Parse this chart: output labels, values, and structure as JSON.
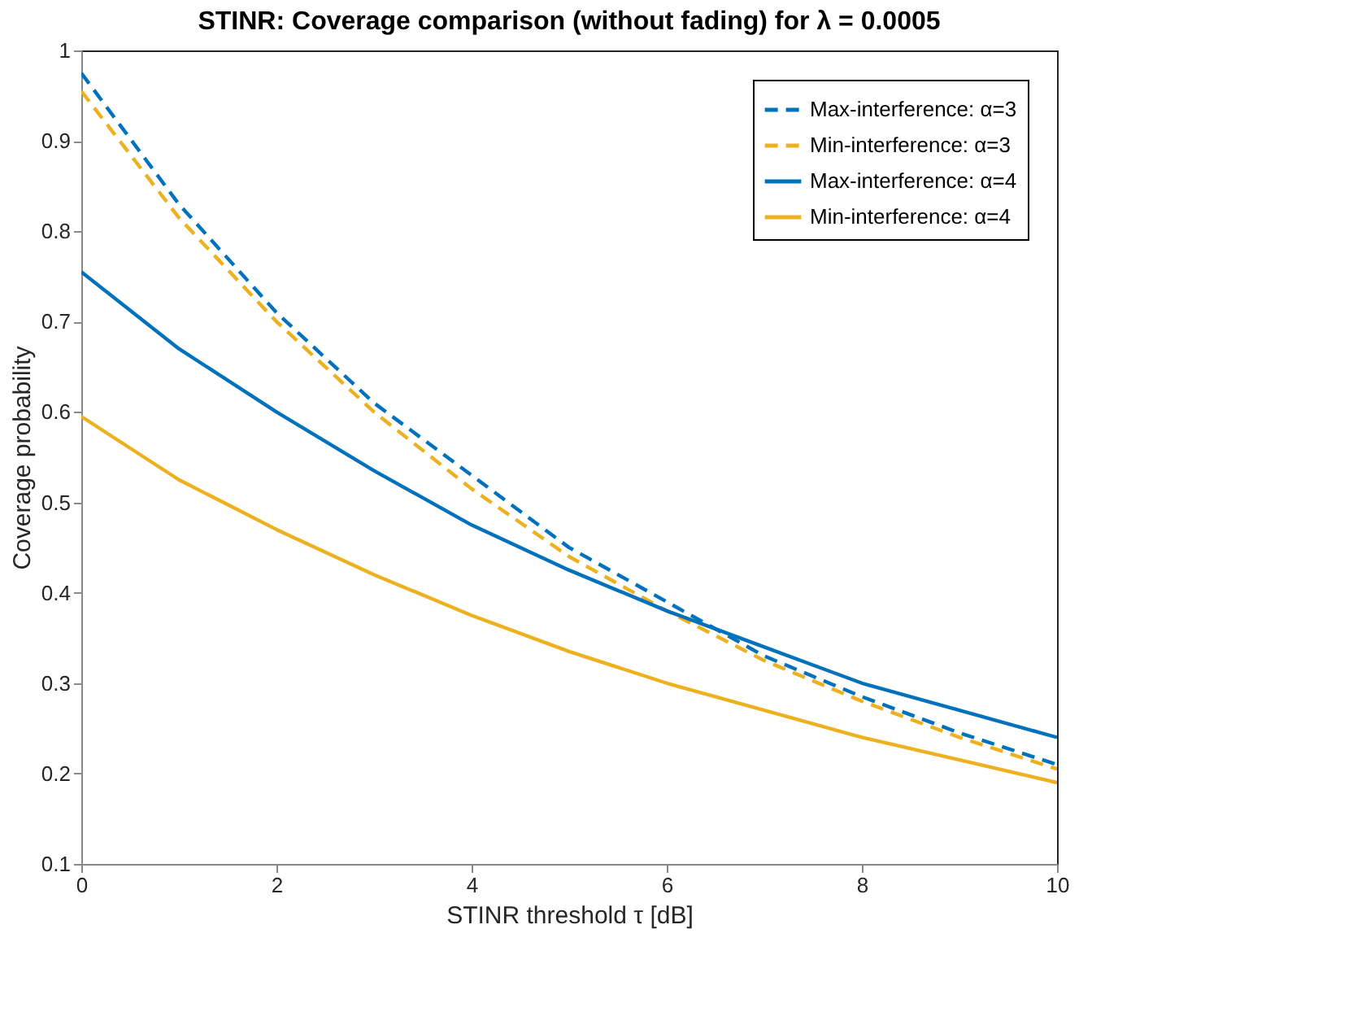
{
  "chart_data": {
    "type": "line",
    "title": "STINR: Coverage comparison (without fading) for λ = 0.0005",
    "xlabel": "STINR threshold τ [dB]",
    "ylabel": "Coverage probability",
    "x": [
      0,
      1,
      2,
      3,
      4,
      5,
      6,
      7,
      8,
      9,
      10
    ],
    "series": [
      {
        "name": "Max-interference: α=3",
        "color": "#0072bd",
        "line_style": "dashed",
        "values": [
          0.975,
          0.83,
          0.71,
          0.61,
          0.53,
          0.45,
          0.39,
          0.33,
          0.285,
          0.245,
          0.21
        ]
      },
      {
        "name": "Min-interference: α=3",
        "color": "#edb120",
        "line_style": "dashed",
        "values": [
          0.955,
          0.815,
          0.7,
          0.6,
          0.515,
          0.44,
          0.38,
          0.325,
          0.28,
          0.24,
          0.205
        ]
      },
      {
        "name": "Max-interference: α=4",
        "color": "#0072bd",
        "line_style": "solid",
        "values": [
          0.755,
          0.67,
          0.6,
          0.535,
          0.475,
          0.425,
          0.38,
          0.34,
          0.3,
          0.27,
          0.24
        ]
      },
      {
        "name": "Min-interference: α=4",
        "color": "#edb120",
        "line_style": "solid",
        "values": [
          0.595,
          0.525,
          0.47,
          0.42,
          0.375,
          0.335,
          0.3,
          0.27,
          0.24,
          0.215,
          0.19
        ]
      }
    ],
    "xlim": [
      0,
      10
    ],
    "xticks": [
      0,
      2,
      4,
      6,
      8,
      10
    ],
    "ylim": [
      0.1,
      1
    ],
    "yticks": [
      0.1,
      0.2,
      0.3,
      0.4,
      0.5,
      0.6,
      0.7,
      0.8,
      0.9,
      1
    ],
    "grid": false,
    "legend": "top right",
    "marker": "none"
  }
}
